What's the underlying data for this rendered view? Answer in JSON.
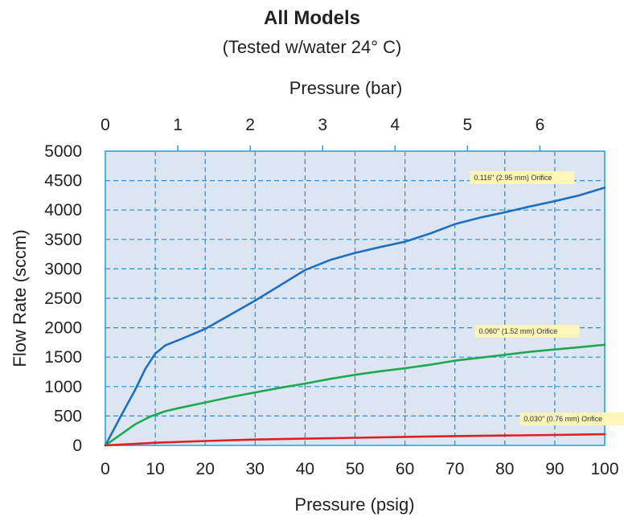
{
  "chart_data": {
    "type": "line",
    "title": "All Models",
    "subtitle": "(Tested w/water 24° C)",
    "xlabel": "Pressure (psig)",
    "x2label": "Pressure (bar)",
    "ylabel": "Flow Rate (sccm)",
    "xlim": [
      0,
      100
    ],
    "ylim": [
      0,
      5000
    ],
    "x_ticks": [
      0,
      10,
      20,
      30,
      40,
      50,
      60,
      70,
      80,
      90,
      100
    ],
    "y_ticks": [
      0,
      500,
      1000,
      1500,
      2000,
      2500,
      3000,
      3500,
      4000,
      4500,
      5000
    ],
    "x2_ticks": [
      0,
      1,
      2,
      3,
      4,
      5,
      6
    ],
    "grid": true,
    "colors": {
      "plot_bg": "#dce6f2",
      "frame": "#29a3e0",
      "grid": "#2a8fd6",
      "annotation_bg": "#fbf6b8"
    },
    "series": [
      {
        "name": "0.116\" (2.95 mm) Orifice",
        "color": "#1f6fbf",
        "x": [
          0,
          3,
          6,
          8,
          10,
          12,
          15,
          20,
          25,
          30,
          35,
          40,
          45,
          50,
          55,
          60,
          65,
          70,
          75,
          80,
          85,
          90,
          95,
          100
        ],
        "y": [
          0,
          480,
          950,
          1300,
          1560,
          1700,
          1800,
          1980,
          2220,
          2460,
          2720,
          2980,
          3150,
          3270,
          3370,
          3460,
          3600,
          3760,
          3870,
          3960,
          4060,
          4150,
          4250,
          4380
        ]
      },
      {
        "name": "0.060\" (1.52 mm) Orifice",
        "color": "#1fa84f",
        "x": [
          0,
          3,
          6,
          9,
          12,
          15,
          20,
          25,
          30,
          35,
          40,
          45,
          50,
          55,
          60,
          65,
          70,
          75,
          80,
          85,
          90,
          95,
          100
        ],
        "y": [
          0,
          180,
          360,
          490,
          580,
          640,
          730,
          820,
          900,
          980,
          1050,
          1130,
          1200,
          1260,
          1310,
          1370,
          1440,
          1490,
          1540,
          1590,
          1630,
          1670,
          1710
        ]
      },
      {
        "name": "0.030\" (0.76 mm) Orifice",
        "color": "#e02020",
        "x": [
          0,
          10,
          20,
          30,
          40,
          50,
          60,
          70,
          80,
          90,
          100
        ],
        "y": [
          0,
          45,
          75,
          100,
          115,
          130,
          145,
          158,
          168,
          178,
          190
        ]
      }
    ],
    "annotations": [
      {
        "text": "0.116\" (2.95 mm) Orifice",
        "x": 73,
        "y": 4550
      },
      {
        "text": "0.060\" (1.52 mm) Orifice",
        "x": 74,
        "y": 1940
      },
      {
        "text": "0.030\" (0.76 mm) Orifice",
        "x": 83,
        "y": 450
      }
    ]
  }
}
